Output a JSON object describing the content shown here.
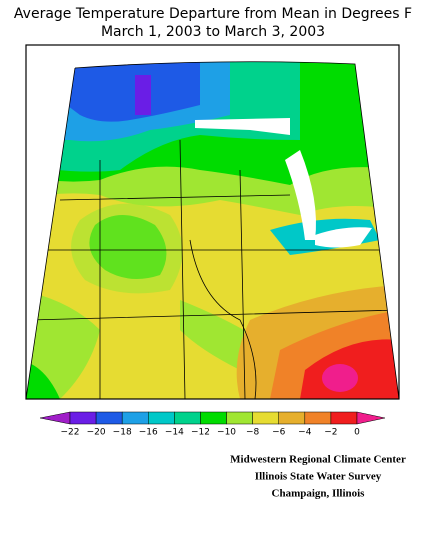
{
  "header": {
    "title": "Average Temperature Departure from Mean in Degrees F",
    "subtitle": "March 1, 2003 to March 3, 2003"
  },
  "legend": {
    "labels": [
      "−22",
      "−20",
      "−18",
      "−16",
      "−14",
      "−12",
      "−10",
      "−8",
      "−6",
      "−4",
      "−2",
      "0"
    ],
    "colors": [
      "#a01ec8",
      "#6a1ee6",
      "#1e5ae6",
      "#1ea0e6",
      "#00c8c8",
      "#00d28c",
      "#00dc00",
      "#a0e632",
      "#e6dc32",
      "#e6af2d",
      "#f08228",
      "#f01e1e",
      "#f01e8c"
    ]
  },
  "credits": [
    "Midwestern Regional Climate Center",
    "Illinois State Water Survey",
    "Champaign, Illinois"
  ]
}
